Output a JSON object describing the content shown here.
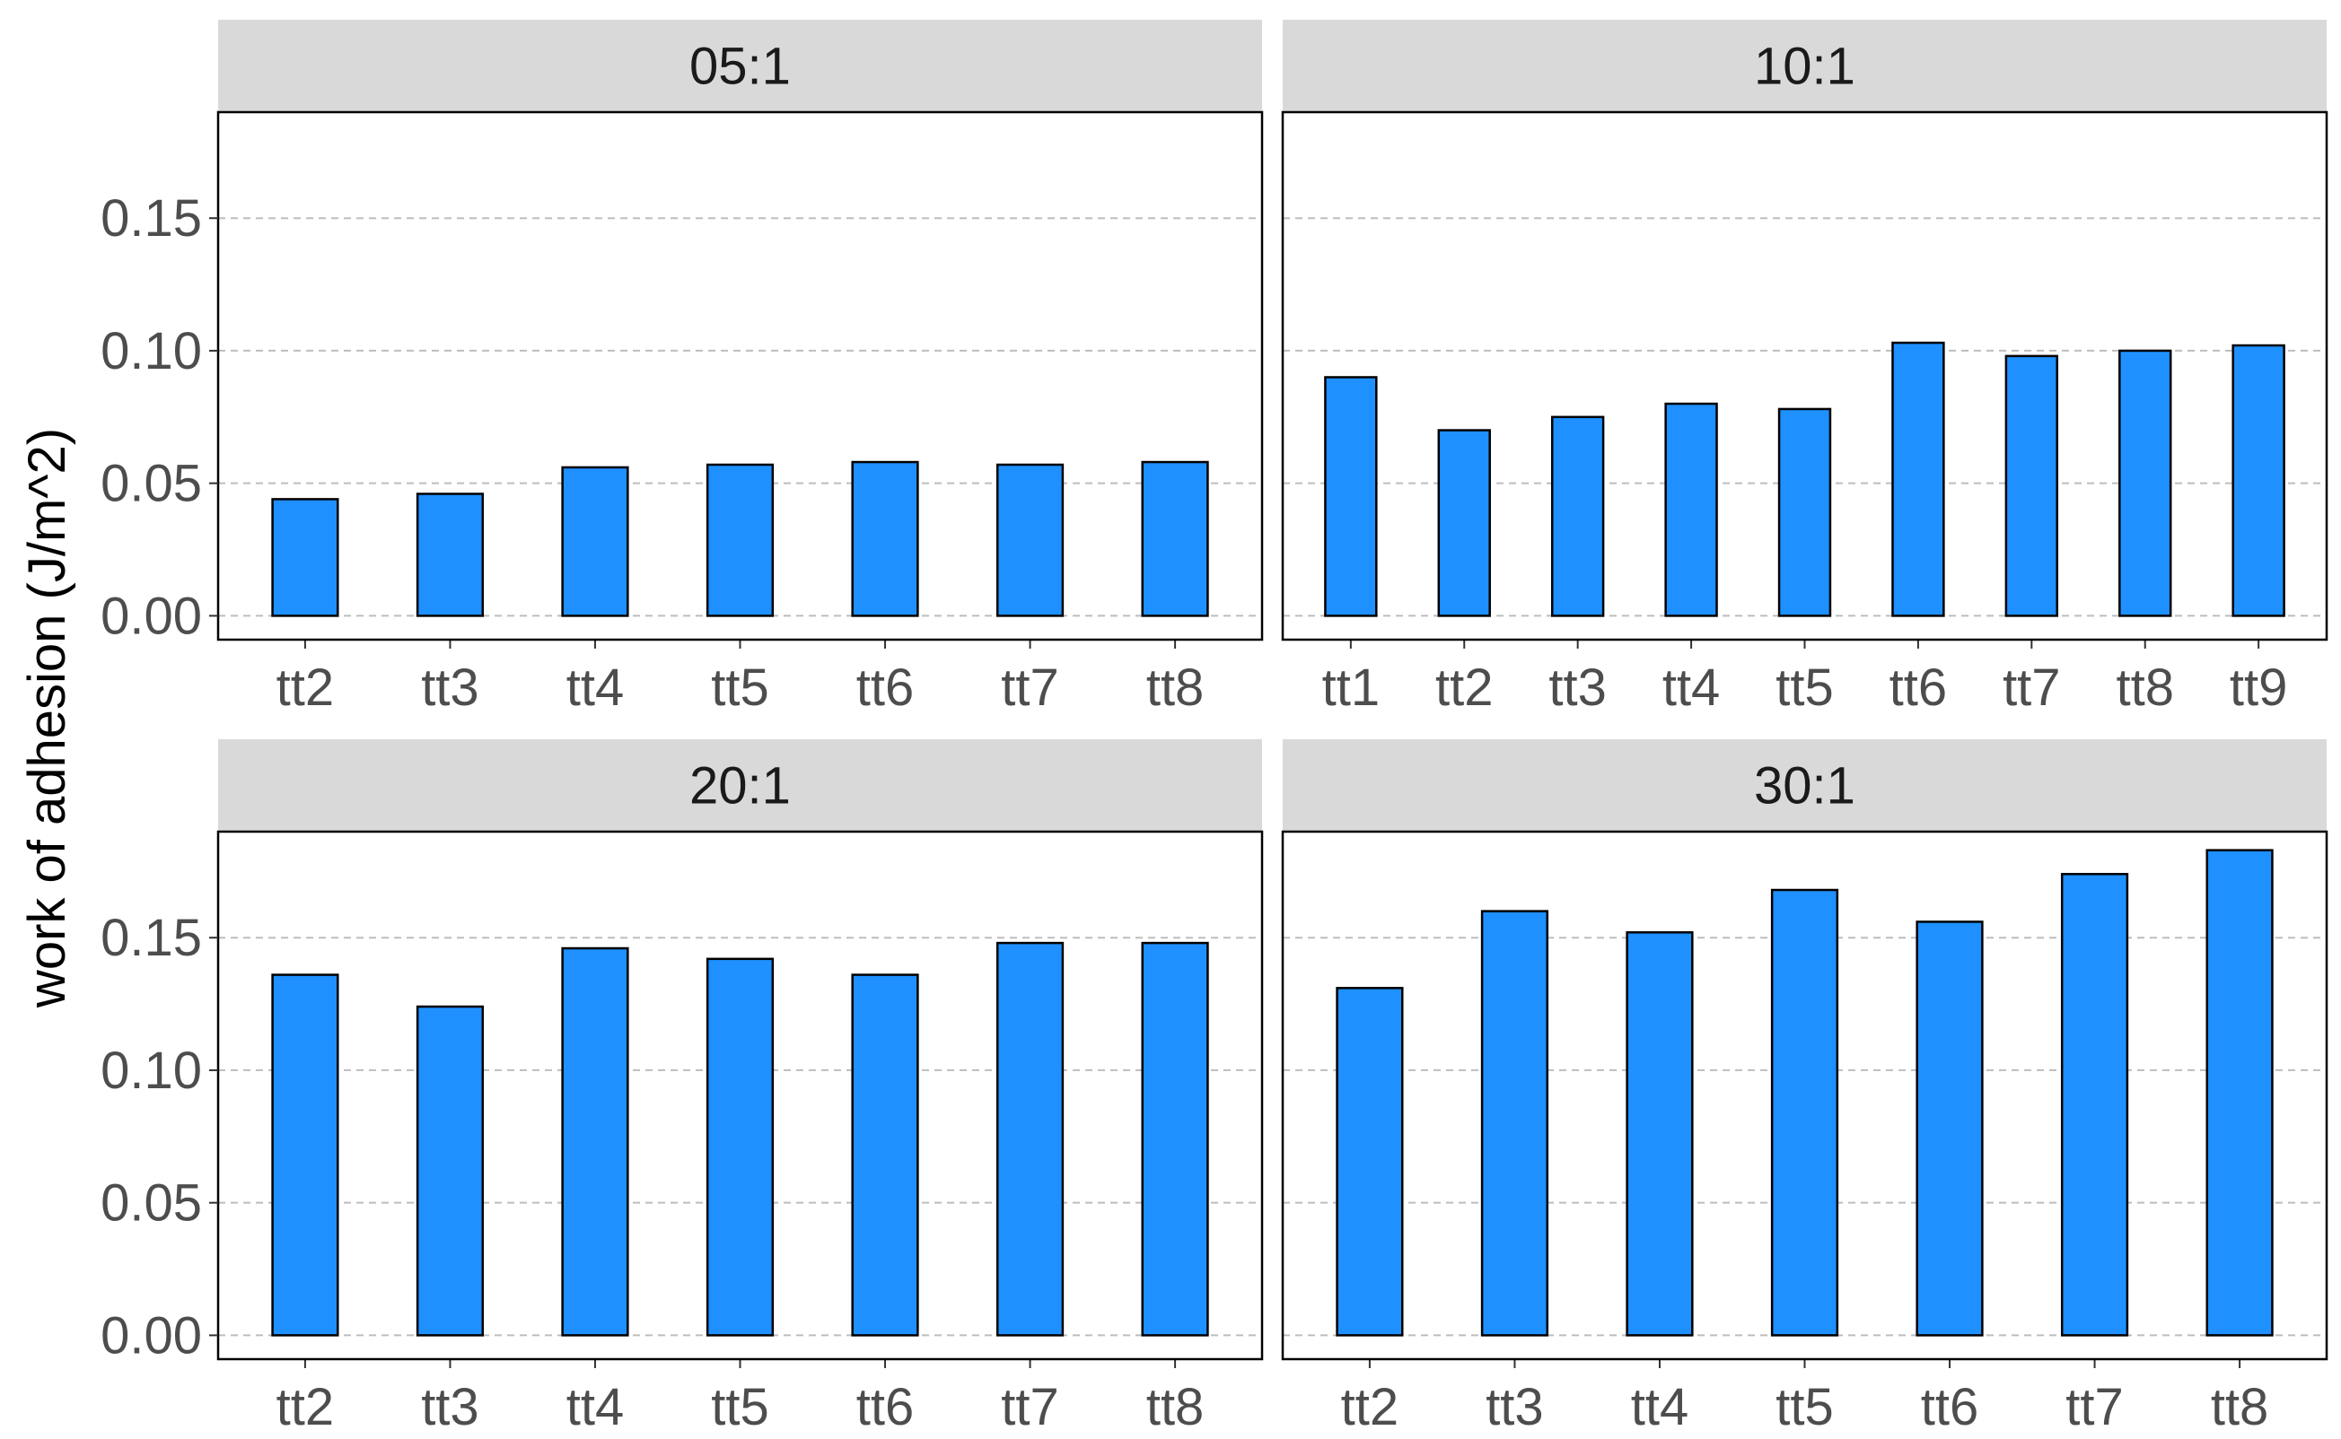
{
  "chart_data": {
    "type": "bar",
    "facet_layout": "2x2 grid, shared y-axis",
    "ylabel": "work of adhesion (J/m^2)",
    "ylim": [
      -0.009,
      0.19
    ],
    "yticks": [
      0.0,
      0.05,
      0.1,
      0.15
    ],
    "ytick_labels": [
      "0.00",
      "0.05",
      "0.10",
      "0.15"
    ],
    "grid": "horizontal dashed major gridlines",
    "bar_color": "#1E90FF",
    "bar_outline": "#000000",
    "strip_color": "#D9D9D9",
    "panels": [
      {
        "title": "05:1",
        "categories": [
          "tt2",
          "tt3",
          "tt4",
          "tt5",
          "tt6",
          "tt7",
          "tt8"
        ],
        "values": [
          0.044,
          0.046,
          0.056,
          0.057,
          0.058,
          0.057,
          0.058
        ]
      },
      {
        "title": "10:1",
        "categories": [
          "tt1",
          "tt2",
          "tt3",
          "tt4",
          "tt5",
          "tt6",
          "tt7",
          "tt8",
          "tt9"
        ],
        "values": [
          0.09,
          0.07,
          0.075,
          0.08,
          0.078,
          0.103,
          0.098,
          0.1,
          0.102
        ]
      },
      {
        "title": "20:1",
        "categories": [
          "tt2",
          "tt3",
          "tt4",
          "tt5",
          "tt6",
          "tt7",
          "tt8"
        ],
        "values": [
          0.136,
          0.124,
          0.146,
          0.142,
          0.136,
          0.148,
          0.148
        ]
      },
      {
        "title": "30:1",
        "categories": [
          "tt2",
          "tt3",
          "tt4",
          "tt5",
          "tt6",
          "tt7",
          "tt8"
        ],
        "values": [
          0.131,
          0.16,
          0.152,
          0.168,
          0.156,
          0.174,
          0.183
        ]
      }
    ]
  }
}
